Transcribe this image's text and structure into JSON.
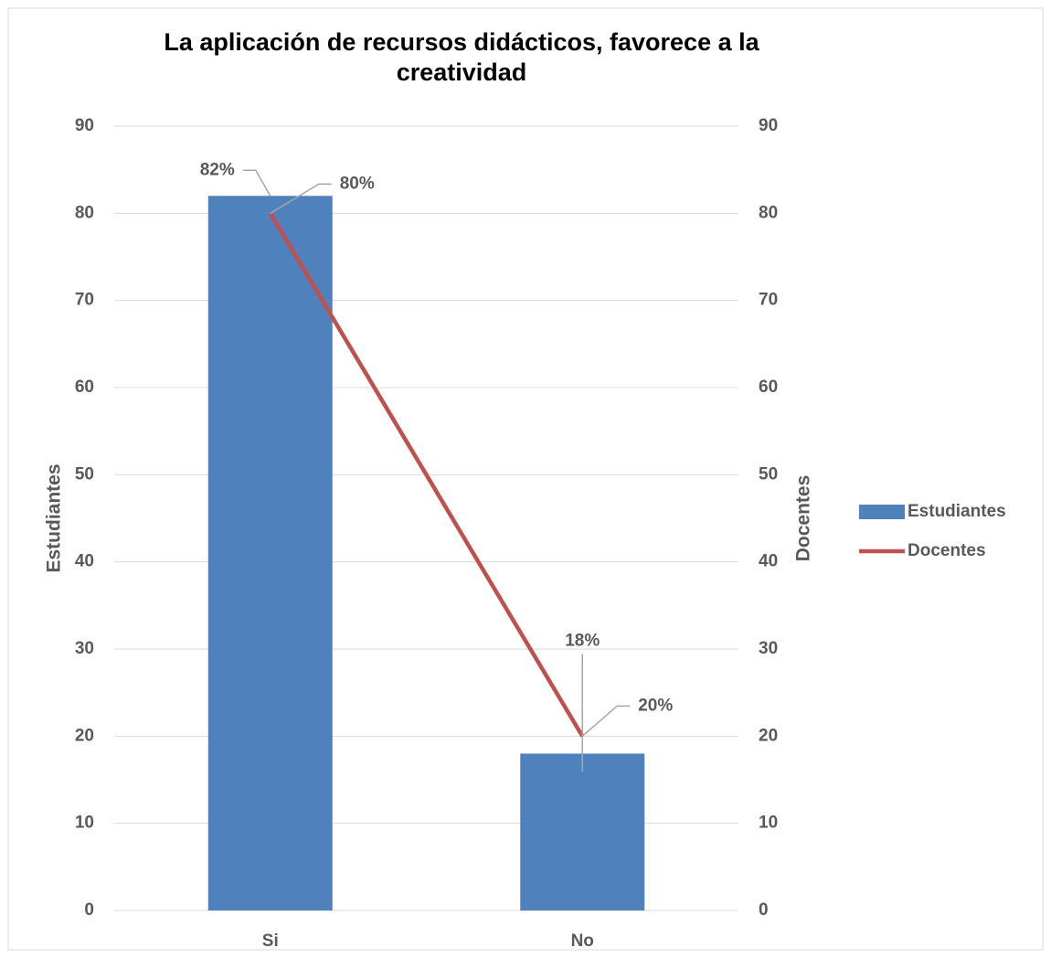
{
  "chart_data": {
    "type": "bar-line",
    "title": "La aplicación de recursos didácticos, favorece a la creatividad",
    "categories": [
      "Si",
      "No"
    ],
    "series": [
      {
        "name": "Estudiantes",
        "type": "bar",
        "color": "#4f81bd",
        "values": [
          82,
          18
        ],
        "value_labels": [
          "82%",
          "18%"
        ]
      },
      {
        "name": "Docentes",
        "type": "line",
        "axis": "y2",
        "color": "#c0504d",
        "values": [
          80,
          20
        ],
        "value_labels": [
          "80%",
          "20%"
        ]
      }
    ],
    "ylabel": "Estudiantes",
    "y2label": "Docentes",
    "ylim": [
      0,
      90
    ],
    "yticks": [
      0,
      10,
      20,
      30,
      40,
      50,
      60,
      70,
      80,
      90
    ],
    "y2lim": [
      0,
      90
    ],
    "y2ticks": [
      0,
      10,
      20,
      30,
      40,
      50,
      60,
      70,
      80,
      90
    ],
    "grid": true,
    "legend": "right"
  }
}
